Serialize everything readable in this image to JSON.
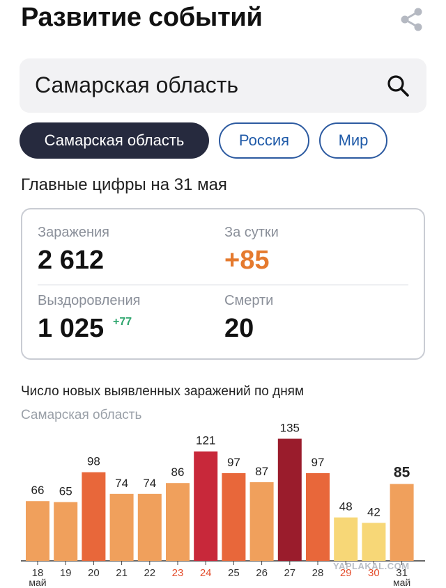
{
  "header": {
    "title": "Развитие событий"
  },
  "search": {
    "value": "Самарская область"
  },
  "chips": [
    {
      "label": "Самарская область",
      "active": true
    },
    {
      "label": "Россия",
      "active": false
    },
    {
      "label": "Мир",
      "active": false
    }
  ],
  "summary": {
    "heading": "Главные цифры на 31 мая",
    "infections_label": "Заражения",
    "infections_value": "2 612",
    "daily_label": "За сутки",
    "daily_value": "+85",
    "recoveries_label": "Выздоровления",
    "recoveries_value": "1 025",
    "recoveries_delta": "+77",
    "deaths_label": "Смерти",
    "deaths_value": "20"
  },
  "chart": {
    "title": "Число новых выявленных заражений по дням",
    "region": "Самарская область"
  },
  "chart_data": {
    "type": "bar",
    "title": "Число новых выявленных заражений по дням",
    "subtitle": "Самарская область",
    "categories": [
      "18",
      "19",
      "20",
      "21",
      "22",
      "23",
      "24",
      "25",
      "26",
      "27",
      "28",
      "29",
      "30",
      "31"
    ],
    "values": [
      66,
      65,
      98,
      74,
      74,
      86,
      121,
      97,
      87,
      135,
      97,
      48,
      42,
      85
    ],
    "weekend": [
      false,
      false,
      false,
      false,
      false,
      true,
      true,
      false,
      false,
      false,
      false,
      true,
      true,
      false
    ],
    "month_labels": {
      "first": "май",
      "last": "май"
    },
    "highlight_last": true,
    "colors": {
      "low": "#f7d777",
      "mid": "#f0a05c",
      "high": "#e8673a",
      "max": "#c8283a",
      "peak": "#9a1c2c",
      "weekend_text": "#e34d2c"
    }
  },
  "watermark": "YAPLAKAL.COM"
}
